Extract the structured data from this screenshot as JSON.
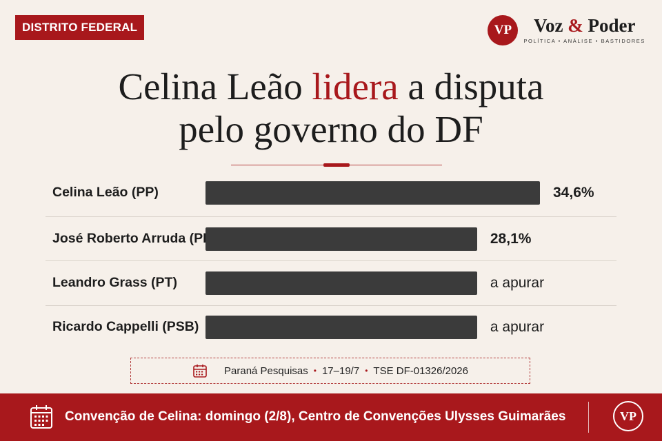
{
  "tag": "DISTRITO FEDERAL",
  "brand": {
    "initials": "VP",
    "name_a": "Voz",
    "amp": "&",
    "name_b": "Poder",
    "tagline": "POLÍTICA • ANÁLISE • BASTIDORES"
  },
  "headline": {
    "part1": "Celina Leão",
    "highlight": "lidera",
    "part2": "a disputa",
    "line2": "pelo governo do DF"
  },
  "chart_data": {
    "type": "bar",
    "orientation": "horizontal",
    "categories": [
      "Celina Leão (PP)",
      "José Roberto Arruda (PL)",
      "Leandro Grass (PT)",
      "Ricardo Cappelli (PSB)"
    ],
    "values": [
      34.6,
      28.1,
      null,
      null
    ],
    "value_labels": [
      "34,6%",
      "28,1%",
      "a apurar",
      "a apurar"
    ],
    "bar_color": "#3b3b3b",
    "pending_bar_value": 28.1
  },
  "source": {
    "institute": "Paraná Pesquisas",
    "dates": "17–19/7",
    "registration": "TSE DF-01326/2026"
  },
  "footer": {
    "text": "Convenção de Celina: domingo (2/8), Centro de Convenções Ulysses Guimarães",
    "logo": "VP"
  },
  "colors": {
    "accent": "#a8181c",
    "background": "#f6f0ea",
    "footer_bg": "#a8181c"
  },
  "icons": {
    "source": "calendar-icon",
    "footer": "calendar-icon"
  }
}
